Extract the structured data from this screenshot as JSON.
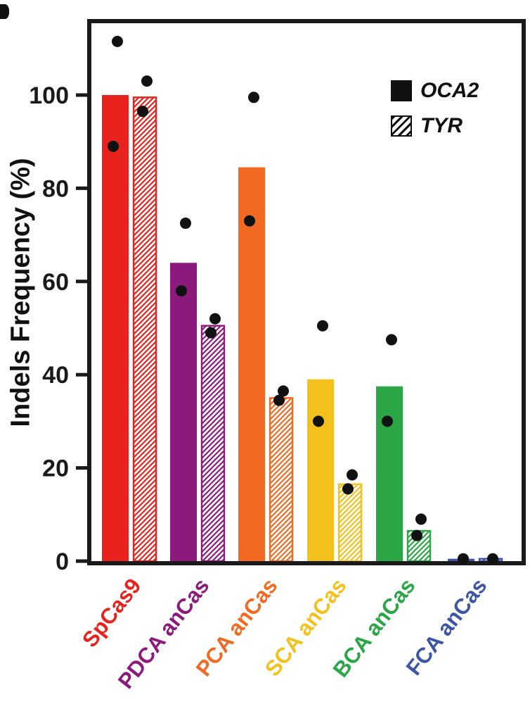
{
  "chart_data": {
    "type": "bar",
    "title": "",
    "xlabel": "",
    "ylabel": "Indels Frequency (%)",
    "ylim": [
      0,
      115
    ],
    "yticks": [
      0,
      20,
      40,
      60,
      80,
      100
    ],
    "grid": false,
    "legend_position": "top-right-inside",
    "legend": [
      {
        "label": "OCA2",
        "swatch": "solid-black-square"
      },
      {
        "label": "TYR",
        "swatch": "hatched-black-square"
      }
    ],
    "series_names": [
      "OCA2",
      "TYR"
    ],
    "groups": [
      {
        "category": "SpCas9",
        "color": "#e8231d",
        "oca2": {
          "bar": 100,
          "points": [
            111.5,
            89
          ]
        },
        "tyr": {
          "bar": 99.5,
          "points": [
            103,
            96.5
          ]
        }
      },
      {
        "category": "PDCA anCas",
        "color": "#8c1a7c",
        "oca2": {
          "bar": 64,
          "points": [
            72.5,
            58
          ]
        },
        "tyr": {
          "bar": 50.5,
          "points": [
            52,
            49
          ]
        }
      },
      {
        "category": "PCA anCas",
        "color": "#f26a21",
        "oca2": {
          "bar": 84.5,
          "points": [
            99.5,
            73
          ]
        },
        "tyr": {
          "bar": 35,
          "points": [
            36.5,
            34.5
          ]
        }
      },
      {
        "category": "SCA anCas",
        "color": "#f3c01c",
        "oca2": {
          "bar": 39,
          "points": [
            50.5,
            30
          ]
        },
        "tyr": {
          "bar": 16.5,
          "points": [
            18.5,
            15.5
          ]
        }
      },
      {
        "category": "BCA anCas",
        "color": "#2ba647",
        "oca2": {
          "bar": 37.5,
          "points": [
            47.5,
            30
          ]
        },
        "tyr": {
          "bar": 6.5,
          "points": [
            9,
            5.5
          ]
        }
      },
      {
        "category": "FCA anCas",
        "color": "#3c55a5",
        "oca2": {
          "bar": 0.5,
          "points": [
            0.5
          ]
        },
        "tyr": {
          "bar": 0.5,
          "points": [
            0.5
          ]
        }
      }
    ]
  }
}
